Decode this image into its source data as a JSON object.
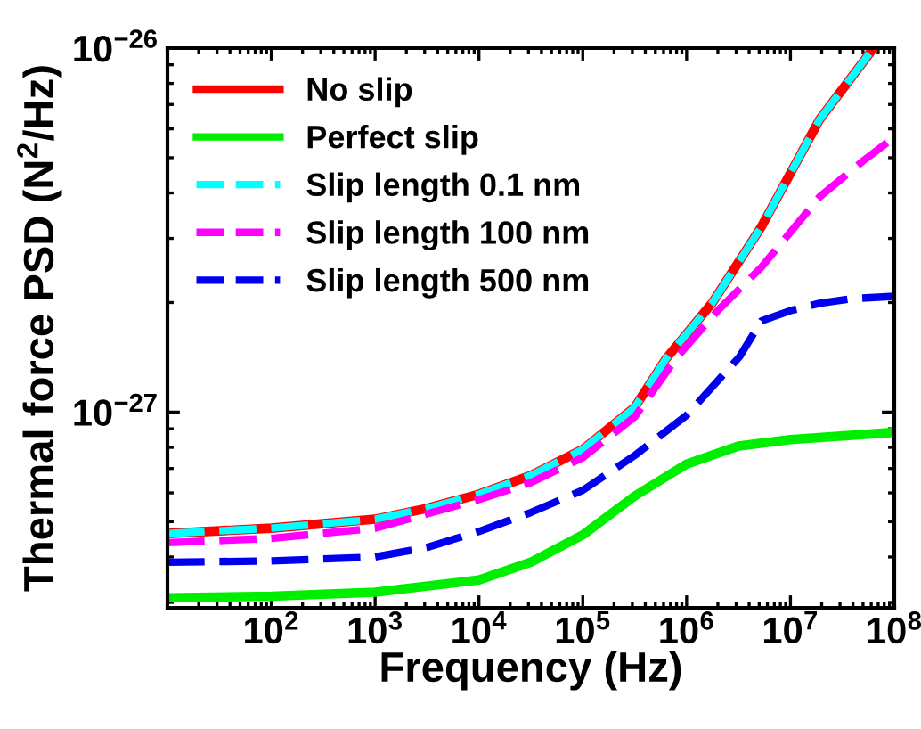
{
  "chart_data": {
    "type": "line",
    "xlabel": "Frequency (Hz)",
    "ylabel": "Thermal force PSD (N$^{2}$/Hz)",
    "log": "xy",
    "grid": false,
    "legend": "top left",
    "xlim": [
      10,
      100000000
    ],
    "ylim": [
      2.9e-28,
      1e-26
    ],
    "xticks": [
      {
        "value": 100,
        "label": "10$^{2}$"
      },
      {
        "value": 1000,
        "label": "10$^{3}$"
      },
      {
        "value": 10000,
        "label": "10$^{4}$"
      },
      {
        "value": 100000,
        "label": "10$^{5}$"
      },
      {
        "value": 1000000,
        "label": "10$^{6}$"
      },
      {
        "value": 10000000,
        "label": "10$^{7}$"
      },
      {
        "value": 100000000,
        "label": "10$^{8}$"
      }
    ],
    "yticks": [
      {
        "value": 1e-27,
        "label": "10$^{−27}$"
      },
      {
        "value": 1e-26,
        "label": "10$^{−26}$"
      }
    ],
    "series": [
      {
        "name": "No slip",
        "color": "#ff0000",
        "line_style": "solid",
        "x": [
          10,
          100,
          1000,
          3162,
          10000,
          31623,
          100000,
          316228,
          631000,
          1778000,
          5248000,
          19055000,
          63096000
        ],
        "values": [
          4.64e-28,
          4.8e-28,
          5.08e-28,
          5.44e-28,
          5.95e-28,
          6.7e-28,
          7.9e-28,
          1.03e-27,
          1.4e-27,
          2e-27,
          3.23e-27,
          6.36e-27,
          1e-26
        ]
      },
      {
        "name": "Perfect slip",
        "color": "#00ee00",
        "line_style": "solid",
        "x": [
          10,
          100,
          1000,
          10000,
          31623,
          100000,
          316228,
          1000000,
          3162278,
          10000000,
          100000000
        ],
        "values": [
          3.09e-28,
          3.12e-28,
          3.2e-28,
          3.46e-28,
          3.87e-28,
          4.6e-28,
          5.88e-28,
          7.2e-28,
          8.07e-28,
          8.4e-28,
          8.8e-28
        ]
      },
      {
        "name": "Slip length 0.1 nm",
        "color": "#00ffff",
        "line_style": "dashed",
        "x": [
          10,
          100,
          1000,
          3162,
          10000,
          31623,
          100000,
          316228,
          631000,
          1778000,
          5248000,
          19055000,
          63096000
        ],
        "values": [
          4.64e-28,
          4.8e-28,
          5.08e-28,
          5.44e-28,
          5.95e-28,
          6.7e-28,
          7.9e-28,
          1.03e-27,
          1.4e-27,
          2e-27,
          3.23e-27,
          6.36e-27,
          1e-26
        ]
      },
      {
        "name": "Slip length 100 nm",
        "color": "#ff00ff",
        "line_style": "dashed",
        "x": [
          10,
          100,
          1000,
          10000,
          31623,
          100000,
          316228,
          813000,
          1995000,
          5248000,
          19055000,
          50119000,
          100000000
        ],
        "values": [
          4.38e-28,
          4.5e-28,
          4.8e-28,
          5.75e-28,
          6.4e-28,
          7.5e-28,
          9.7e-28,
          1.42e-27,
          1.9e-27,
          2.5e-27,
          3.9e-27,
          4.9e-27,
          5.69e-27
        ]
      },
      {
        "name": "Slip length 500 nm",
        "color": "#0000ee",
        "line_style": "dashed",
        "x": [
          10,
          100,
          1000,
          3162,
          10000,
          31623,
          100000,
          316228,
          1000000,
          3236000,
          5248000,
          10000000,
          19055000,
          39811000,
          100000000
        ],
        "values": [
          3.87e-28,
          3.9e-28,
          4e-28,
          4.25e-28,
          4.7e-28,
          5.3e-28,
          6.1e-28,
          7.6e-28,
          9.8e-28,
          1.42e-27,
          1.78e-27,
          1.9e-27,
          1.99e-27,
          2.05e-27,
          2.08e-27
        ]
      }
    ]
  }
}
